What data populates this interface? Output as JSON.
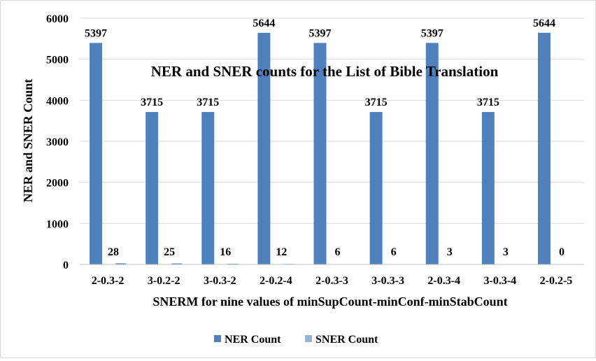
{
  "chart_data": {
    "type": "bar",
    "title": "NER and SNER counts for the List of Bible Translation",
    "xlabel": "SNERM for nine values of minSupCount-minConf-minStabCount",
    "ylabel": "NER and SNER Count",
    "categories": [
      "2-0.3-2",
      "3-0.2-2",
      "3-0.3-2",
      "2-0.2-4",
      "2-0.3-3",
      "3-0.3-3",
      "2-0.3-4",
      "3-0.3-4",
      "2-0.2-5"
    ],
    "series": [
      {
        "name": "NER Count",
        "color": "#4f81bd",
        "values": [
          5397,
          3715,
          3715,
          5644,
          5397,
          3715,
          5397,
          3715,
          5644
        ]
      },
      {
        "name": "SNER Count",
        "color": "#95b3d7",
        "values": [
          28,
          25,
          16,
          12,
          6,
          6,
          3,
          3,
          0
        ]
      }
    ],
    "ylim": [
      0,
      6000
    ],
    "yticks": [
      0,
      1000,
      2000,
      3000,
      4000,
      5000,
      6000
    ],
    "grid": true,
    "legend_position": "bottom"
  }
}
